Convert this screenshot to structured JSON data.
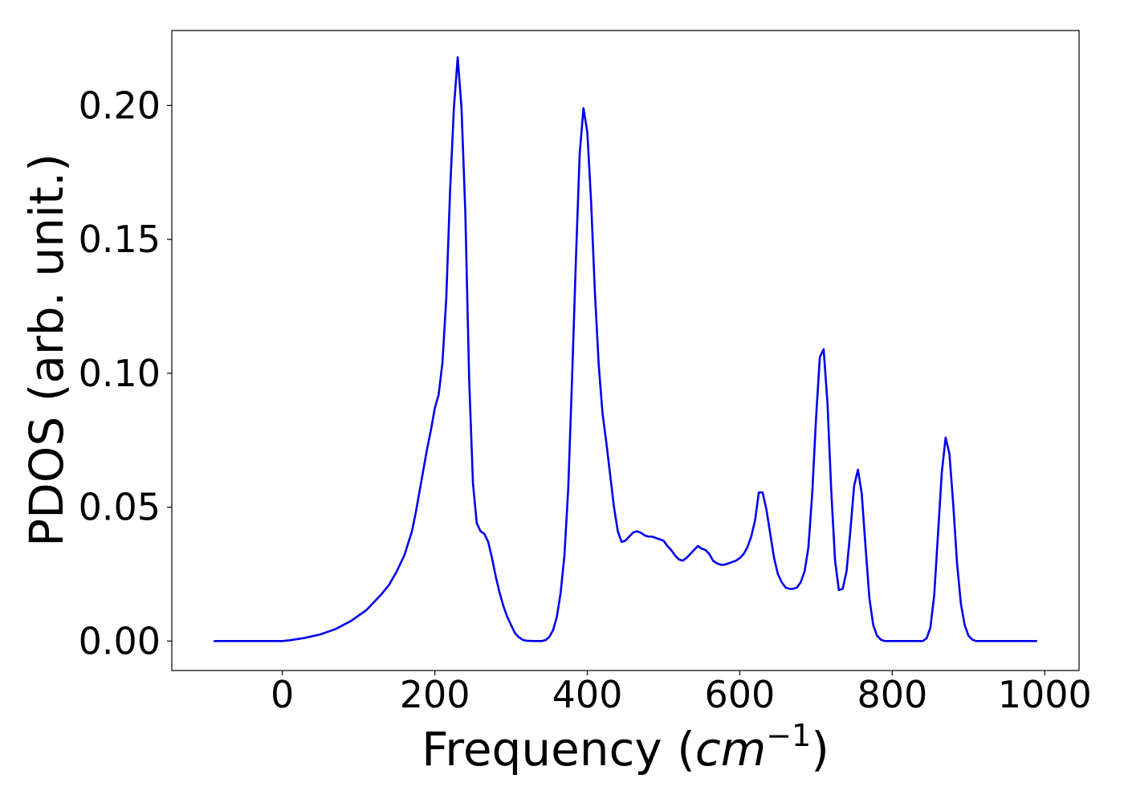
{
  "chart_data": {
    "type": "line",
    "title": "",
    "xlabel": "Frequency",
    "xlabel_paren_open": "(",
    "xlabel_unit": "cm",
    "xlabel_unit_exp": "−1",
    "xlabel_paren_close": ")",
    "ylabel": "PDOS (arb. unit.)",
    "xlim": [
      -145,
      1045
    ],
    "ylim": [
      -0.011,
      0.228
    ],
    "xticks": [
      0,
      200,
      400,
      600,
      800,
      1000
    ],
    "xtick_labels": [
      "0",
      "200",
      "400",
      "600",
      "800",
      "1000"
    ],
    "yticks": [
      0.0,
      0.05,
      0.1,
      0.15,
      0.2
    ],
    "ytick_labels": [
      "0.00",
      "0.05",
      "0.10",
      "0.15",
      "0.20"
    ],
    "grid": false,
    "series": [
      {
        "color": "#0000ee",
        "points": [
          [
            -90,
            0.0
          ],
          [
            0,
            0.0
          ],
          [
            10,
            0.0003
          ],
          [
            30,
            0.0012
          ],
          [
            50,
            0.0025
          ],
          [
            70,
            0.0045
          ],
          [
            90,
            0.0075
          ],
          [
            110,
            0.0115
          ],
          [
            130,
            0.0175
          ],
          [
            140,
            0.021
          ],
          [
            150,
            0.026
          ],
          [
            160,
            0.032
          ],
          [
            170,
            0.041
          ],
          [
            175,
            0.048
          ],
          [
            180,
            0.056
          ],
          [
            185,
            0.064
          ],
          [
            190,
            0.072
          ],
          [
            195,
            0.079
          ],
          [
            200,
            0.087
          ],
          [
            205,
            0.092
          ],
          [
            210,
            0.104
          ],
          [
            215,
            0.128
          ],
          [
            220,
            0.168
          ],
          [
            225,
            0.199
          ],
          [
            230,
            0.218
          ],
          [
            235,
            0.199
          ],
          [
            240,
            0.16
          ],
          [
            245,
            0.098
          ],
          [
            250,
            0.059
          ],
          [
            255,
            0.044
          ],
          [
            260,
            0.041
          ],
          [
            265,
            0.04
          ],
          [
            270,
            0.037
          ],
          [
            275,
            0.031
          ],
          [
            280,
            0.024
          ],
          [
            285,
            0.018
          ],
          [
            290,
            0.013
          ],
          [
            295,
            0.009
          ],
          [
            300,
            0.006
          ],
          [
            305,
            0.003
          ],
          [
            310,
            0.0015
          ],
          [
            315,
            0.0005
          ],
          [
            320,
            0.0001
          ],
          [
            330,
            0.0
          ],
          [
            340,
            0.0
          ],
          [
            345,
            0.0003
          ],
          [
            350,
            0.0015
          ],
          [
            355,
            0.004
          ],
          [
            360,
            0.009
          ],
          [
            365,
            0.018
          ],
          [
            370,
            0.032
          ],
          [
            375,
            0.057
          ],
          [
            380,
            0.098
          ],
          [
            385,
            0.142
          ],
          [
            390,
            0.182
          ],
          [
            395,
            0.199
          ],
          [
            400,
            0.19
          ],
          [
            405,
            0.164
          ],
          [
            410,
            0.13
          ],
          [
            415,
            0.103
          ],
          [
            420,
            0.085
          ],
          [
            425,
            0.074
          ],
          [
            430,
            0.062
          ],
          [
            435,
            0.05
          ],
          [
            440,
            0.041
          ],
          [
            445,
            0.037
          ],
          [
            450,
            0.0375
          ],
          [
            455,
            0.039
          ],
          [
            460,
            0.0405
          ],
          [
            465,
            0.041
          ],
          [
            470,
            0.0405
          ],
          [
            475,
            0.0395
          ],
          [
            480,
            0.039
          ],
          [
            485,
            0.039
          ],
          [
            490,
            0.0385
          ],
          [
            495,
            0.038
          ],
          [
            500,
            0.0375
          ],
          [
            505,
            0.0355
          ],
          [
            510,
            0.034
          ],
          [
            515,
            0.032
          ],
          [
            520,
            0.0305
          ],
          [
            525,
            0.03
          ],
          [
            530,
            0.031
          ],
          [
            535,
            0.0325
          ],
          [
            540,
            0.034
          ],
          [
            545,
            0.0355
          ],
          [
            550,
            0.0345
          ],
          [
            555,
            0.034
          ],
          [
            560,
            0.0325
          ],
          [
            565,
            0.03
          ],
          [
            570,
            0.029
          ],
          [
            575,
            0.0285
          ],
          [
            580,
            0.0285
          ],
          [
            585,
            0.029
          ],
          [
            590,
            0.0295
          ],
          [
            595,
            0.03
          ],
          [
            600,
            0.031
          ],
          [
            605,
            0.0325
          ],
          [
            610,
            0.035
          ],
          [
            615,
            0.039
          ],
          [
            620,
            0.045
          ],
          [
            625,
            0.0555
          ],
          [
            630,
            0.0555
          ],
          [
            635,
            0.049
          ],
          [
            640,
            0.04
          ],
          [
            645,
            0.031
          ],
          [
            650,
            0.025
          ],
          [
            655,
            0.022
          ],
          [
            660,
            0.02
          ],
          [
            665,
            0.0195
          ],
          [
            670,
            0.0195
          ],
          [
            675,
            0.02
          ],
          [
            680,
            0.022
          ],
          [
            685,
            0.026
          ],
          [
            690,
            0.035
          ],
          [
            695,
            0.055
          ],
          [
            700,
            0.083
          ],
          [
            705,
            0.106
          ],
          [
            710,
            0.109
          ],
          [
            715,
            0.089
          ],
          [
            720,
            0.056
          ],
          [
            725,
            0.03
          ],
          [
            730,
            0.019
          ],
          [
            735,
            0.0195
          ],
          [
            740,
            0.026
          ],
          [
            745,
            0.041
          ],
          [
            750,
            0.058
          ],
          [
            755,
            0.064
          ],
          [
            760,
            0.055
          ],
          [
            765,
            0.035
          ],
          [
            770,
            0.016
          ],
          [
            775,
            0.006
          ],
          [
            780,
            0.002
          ],
          [
            785,
            0.0005
          ],
          [
            790,
            0.0
          ],
          [
            840,
            0.0
          ],
          [
            845,
            0.001
          ],
          [
            850,
            0.005
          ],
          [
            855,
            0.017
          ],
          [
            860,
            0.04
          ],
          [
            865,
            0.063
          ],
          [
            870,
            0.076
          ],
          [
            875,
            0.07
          ],
          [
            880,
            0.051
          ],
          [
            885,
            0.029
          ],
          [
            890,
            0.014
          ],
          [
            895,
            0.006
          ],
          [
            900,
            0.002
          ],
          [
            905,
            0.0005
          ],
          [
            910,
            0.0
          ],
          [
            990,
            0.0
          ]
        ]
      }
    ]
  }
}
